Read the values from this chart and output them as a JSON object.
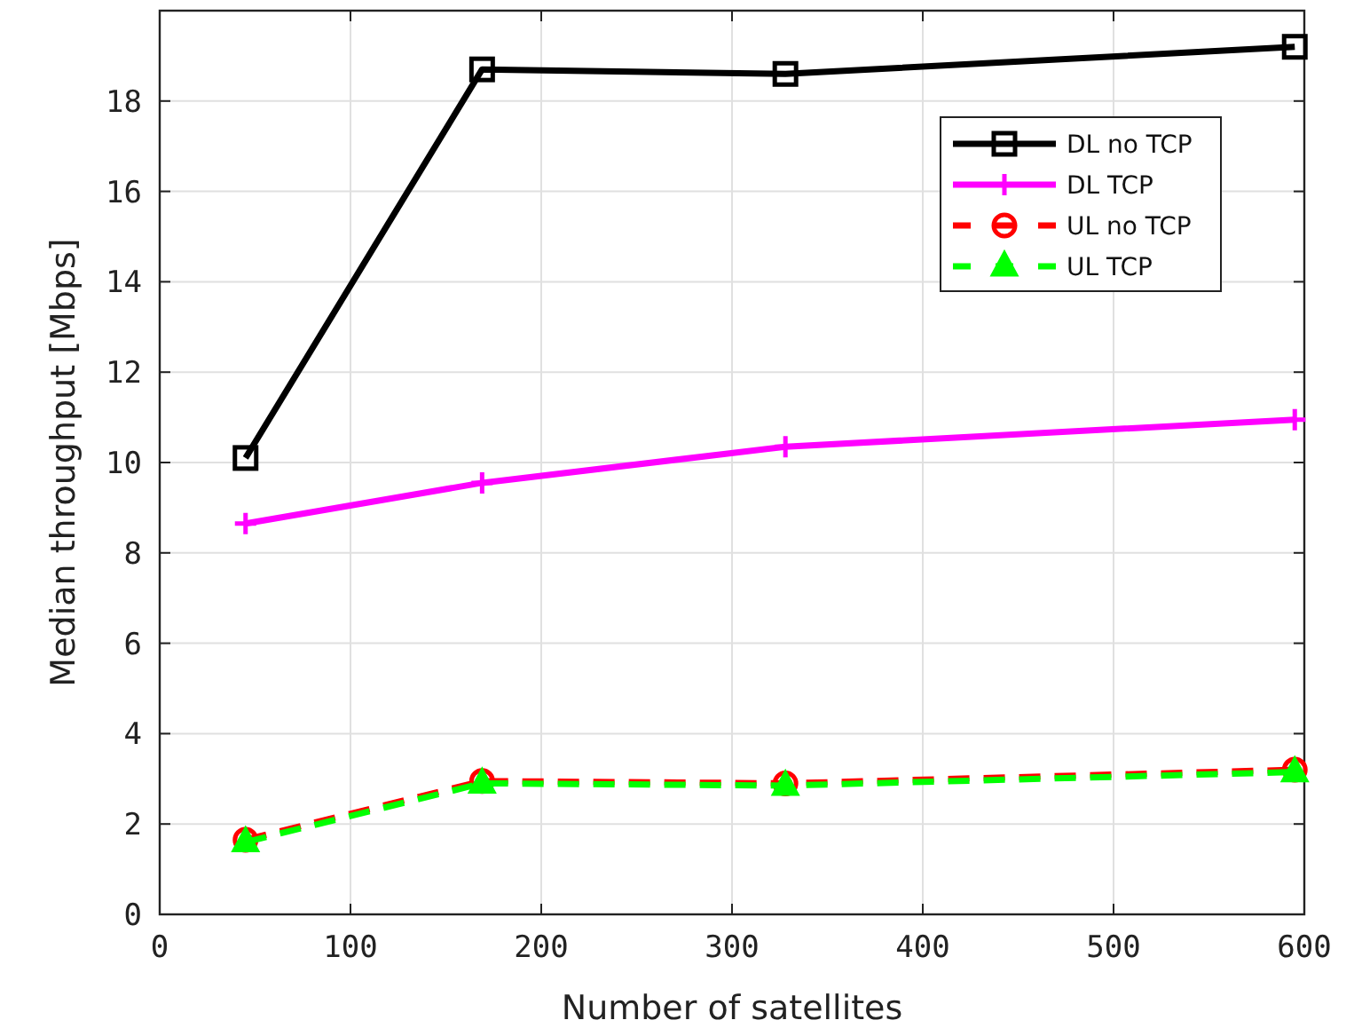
{
  "chart_data": {
    "type": "line",
    "xlabel": "Number of satellites",
    "ylabel": "Median throughput [Mbps]",
    "xlim": [
      0,
      600
    ],
    "xticks": [
      0,
      100,
      200,
      300,
      400,
      500,
      600
    ],
    "ylim": [
      0,
      20
    ],
    "yticks": [
      0,
      2,
      4,
      6,
      8,
      10,
      12,
      14,
      16,
      18,
      {
        "value": 20,
        "label": null
      }
    ],
    "grid": true,
    "legend": "top right",
    "series": [
      {
        "name": "DL no TCP",
        "color": "#000000",
        "x": [
          45,
          169,
          328,
          595
        ],
        "values": [
          10.1,
          18.7,
          18.6,
          19.2
        ],
        "marker": "square",
        "line_style": "solid"
      },
      {
        "name": "DL TCP",
        "color": "#ff00ff",
        "x": [
          45,
          169,
          328,
          595
        ],
        "values": [
          8.65,
          9.55,
          10.35,
          10.95
        ],
        "marker": "cross",
        "line_style": "solid"
      },
      {
        "name": "UL no TCP",
        "color": "#ff0000",
        "x": [
          45,
          169,
          328,
          595
        ],
        "values": [
          1.65,
          2.95,
          2.9,
          3.2
        ],
        "marker": "circle",
        "line_style": "dashed"
      },
      {
        "name": "UL TCP",
        "color": "#00ff00",
        "x": [
          45,
          169,
          328,
          595
        ],
        "values": [
          1.6,
          2.9,
          2.85,
          3.15
        ],
        "marker": "triangle",
        "line_style": "dashed"
      }
    ]
  }
}
